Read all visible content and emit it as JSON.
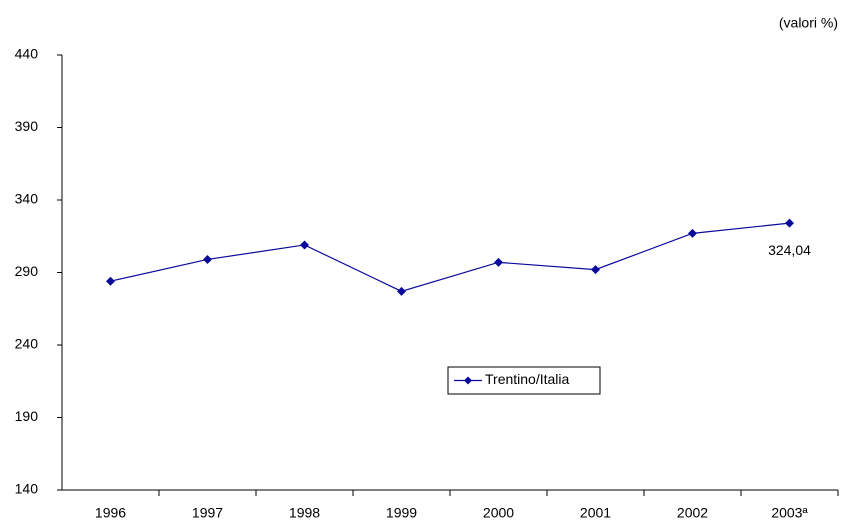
{
  "chart_data": {
    "type": "line",
    "unit_label": "(valori %)",
    "categories": [
      "1996",
      "1997",
      "1998",
      "1999",
      "2000",
      "2001",
      "2002",
      "2003ª"
    ],
    "series": [
      {
        "name": "Trentino/Italia",
        "color": "#0a0a9c",
        "values": [
          284,
          299,
          309,
          277,
          297,
          292,
          317,
          324.04
        ],
        "value_labels": [
          null,
          null,
          null,
          null,
          null,
          null,
          null,
          "324,04"
        ]
      }
    ],
    "ylim": [
      140,
      440
    ],
    "yticks": [
      140,
      190,
      240,
      290,
      340,
      390,
      440
    ],
    "grid": false,
    "legend": "center"
  }
}
